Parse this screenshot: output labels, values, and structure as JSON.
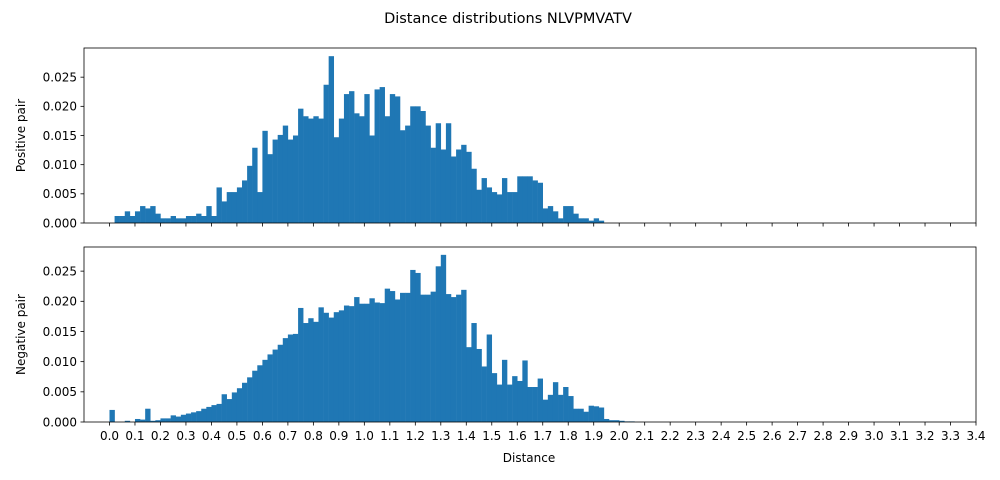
{
  "figure": {
    "title": "Distance distributions NLVPMVATV",
    "bar_color": "#1f77b4"
  },
  "chart_data": [
    {
      "type": "bar",
      "title": "",
      "xlabel": "",
      "ylabel": "Positive pair",
      "xlim": [
        -0.1,
        3.4
      ],
      "ylim": [
        0,
        0.03
      ],
      "bin_width": 0.02,
      "x_tick_labels_visible": false,
      "y_ticks": [
        0.0,
        0.005,
        0.01,
        0.015,
        0.02,
        0.025
      ],
      "y_tick_labels": [
        "0.000",
        "0.005",
        "0.010",
        "0.015",
        "0.020",
        "0.025"
      ],
      "bins_start": [
        0.02,
        0.04,
        0.06,
        0.08,
        0.1,
        0.12,
        0.14,
        0.16,
        0.18,
        0.2,
        0.22,
        0.24,
        0.26,
        0.28,
        0.3,
        0.32,
        0.34,
        0.36,
        0.38,
        0.4,
        0.42,
        0.44,
        0.46,
        0.48,
        0.5,
        0.52,
        0.54,
        0.56,
        0.58,
        0.6,
        0.62,
        0.64,
        0.66,
        0.68,
        0.7,
        0.72,
        0.74,
        0.76,
        0.78,
        0.8,
        0.82,
        0.84,
        0.86,
        0.88,
        0.9,
        0.92,
        0.94,
        0.96,
        0.98,
        1.0,
        1.02,
        1.04,
        1.06,
        1.08,
        1.1,
        1.12,
        1.14,
        1.16,
        1.18,
        1.2,
        1.22,
        1.24,
        1.26,
        1.28,
        1.3,
        1.32,
        1.34,
        1.36,
        1.38,
        1.4,
        1.42,
        1.44,
        1.46,
        1.48,
        1.5,
        1.52,
        1.54,
        1.56,
        1.58,
        1.6,
        1.62,
        1.64,
        1.66,
        1.68,
        1.7,
        1.72,
        1.74,
        1.76,
        1.78,
        1.8,
        1.82,
        1.84,
        1.86,
        1.88,
        1.9,
        1.92
      ],
      "values": [
        0.0012,
        0.0012,
        0.002,
        0.0012,
        0.002,
        0.0029,
        0.0025,
        0.0029,
        0.0016,
        0.0008,
        0.0008,
        0.0012,
        0.0008,
        0.0008,
        0.0012,
        0.0012,
        0.0016,
        0.0012,
        0.0029,
        0.0012,
        0.0061,
        0.0037,
        0.0053,
        0.0053,
        0.0061,
        0.0073,
        0.0098,
        0.0129,
        0.0053,
        0.0158,
        0.0118,
        0.0143,
        0.0151,
        0.0167,
        0.0143,
        0.015,
        0.0196,
        0.0183,
        0.0179,
        0.0183,
        0.0179,
        0.0237,
        0.0286,
        0.0147,
        0.0179,
        0.0221,
        0.0226,
        0.0188,
        0.0183,
        0.0221,
        0.015,
        0.0229,
        0.0233,
        0.0183,
        0.0221,
        0.0217,
        0.0159,
        0.0167,
        0.02,
        0.02,
        0.0192,
        0.0167,
        0.0129,
        0.0171,
        0.0126,
        0.0171,
        0.0114,
        0.0126,
        0.0134,
        0.0122,
        0.0093,
        0.0057,
        0.0077,
        0.0061,
        0.0053,
        0.0049,
        0.0077,
        0.0053,
        0.0053,
        0.008,
        0.008,
        0.008,
        0.0073,
        0.0069,
        0.0025,
        0.0029,
        0.002,
        0.0008,
        0.0029,
        0.0029,
        0.0016,
        0.0008,
        0.0008,
        0.0004,
        0.0008,
        0.0004
      ]
    },
    {
      "type": "bar",
      "title": "",
      "xlabel": "Distance",
      "ylabel": "Negative pair",
      "xlim": [
        -0.1,
        3.4
      ],
      "ylim": [
        0,
        0.029
      ],
      "bin_width": 0.02,
      "x_tick_labels_visible": true,
      "x_ticks": [
        0.0,
        0.1,
        0.2,
        0.3,
        0.4,
        0.5,
        0.6,
        0.7,
        0.8,
        0.9,
        1.0,
        1.1,
        1.2,
        1.3,
        1.4,
        1.5,
        1.6,
        1.7,
        1.8,
        1.9,
        2.0,
        2.1,
        2.2,
        2.3,
        2.4,
        2.5,
        2.6,
        2.7,
        2.8,
        2.9,
        3.0,
        3.1,
        3.2,
        3.3,
        3.4
      ],
      "x_tick_labels": [
        "0.0",
        "0.1",
        "0.2",
        "0.3",
        "0.4",
        "0.5",
        "0.6",
        "0.7",
        "0.8",
        "0.9",
        "1.0",
        "1.1",
        "1.2",
        "1.3",
        "1.4",
        "1.5",
        "1.6",
        "1.7",
        "1.8",
        "1.9",
        "2.0",
        "2.1",
        "2.2",
        "2.3",
        "2.4",
        "2.5",
        "2.6",
        "2.7",
        "2.8",
        "2.9",
        "3.0",
        "3.1",
        "3.2",
        "3.3",
        "3.4"
      ],
      "y_ticks": [
        0.0,
        0.005,
        0.01,
        0.015,
        0.02,
        0.025
      ],
      "y_tick_labels": [
        "0.000",
        "0.005",
        "0.010",
        "0.015",
        "0.020",
        "0.025"
      ],
      "bins_start": [
        0.0,
        0.02,
        0.04,
        0.06,
        0.08,
        0.1,
        0.12,
        0.14,
        0.16,
        0.18,
        0.2,
        0.22,
        0.24,
        0.26,
        0.28,
        0.3,
        0.32,
        0.34,
        0.36,
        0.38,
        0.4,
        0.42,
        0.44,
        0.46,
        0.48,
        0.5,
        0.52,
        0.54,
        0.56,
        0.58,
        0.6,
        0.62,
        0.64,
        0.66,
        0.68,
        0.7,
        0.72,
        0.74,
        0.76,
        0.78,
        0.8,
        0.82,
        0.84,
        0.86,
        0.88,
        0.9,
        0.92,
        0.94,
        0.96,
        0.98,
        1.0,
        1.02,
        1.04,
        1.06,
        1.08,
        1.1,
        1.12,
        1.14,
        1.16,
        1.18,
        1.2,
        1.22,
        1.24,
        1.26,
        1.28,
        1.3,
        1.32,
        1.34,
        1.36,
        1.38,
        1.4,
        1.42,
        1.44,
        1.46,
        1.48,
        1.5,
        1.52,
        1.54,
        1.56,
        1.58,
        1.6,
        1.62,
        1.64,
        1.66,
        1.68,
        1.7,
        1.72,
        1.74,
        1.76,
        1.78,
        1.8,
        1.82,
        1.84,
        1.86,
        1.88,
        1.9,
        1.92,
        1.94,
        1.96,
        1.98,
        2.0,
        2.02,
        2.04
      ],
      "values": [
        0.002,
        0.0,
        0.0,
        0.0002,
        0.0,
        0.0005,
        0.0004,
        0.0022,
        0.0002,
        0.0003,
        0.0006,
        0.0006,
        0.0011,
        0.0009,
        0.0012,
        0.0014,
        0.0016,
        0.0018,
        0.0022,
        0.0025,
        0.0028,
        0.003,
        0.0046,
        0.0038,
        0.0049,
        0.0056,
        0.0065,
        0.0074,
        0.0085,
        0.0094,
        0.0103,
        0.0112,
        0.012,
        0.0128,
        0.0139,
        0.0145,
        0.0146,
        0.0189,
        0.0164,
        0.0172,
        0.0166,
        0.019,
        0.0181,
        0.0173,
        0.0182,
        0.0185,
        0.0193,
        0.0192,
        0.0207,
        0.0196,
        0.0196,
        0.0205,
        0.0198,
        0.0197,
        0.0221,
        0.0217,
        0.0203,
        0.0214,
        0.0214,
        0.0252,
        0.0247,
        0.0211,
        0.0211,
        0.0216,
        0.0258,
        0.0277,
        0.0212,
        0.0207,
        0.0211,
        0.0219,
        0.0124,
        0.0164,
        0.0121,
        0.0092,
        0.0145,
        0.0081,
        0.0062,
        0.0103,
        0.0062,
        0.0076,
        0.0068,
        0.0102,
        0.0058,
        0.0058,
        0.0072,
        0.0037,
        0.0045,
        0.0066,
        0.0045,
        0.0058,
        0.0043,
        0.0022,
        0.0022,
        0.0017,
        0.0027,
        0.0026,
        0.0024,
        0.0005,
        0.0003,
        0.0003,
        0.0002,
        0.0001,
        0.0001
      ]
    }
  ]
}
